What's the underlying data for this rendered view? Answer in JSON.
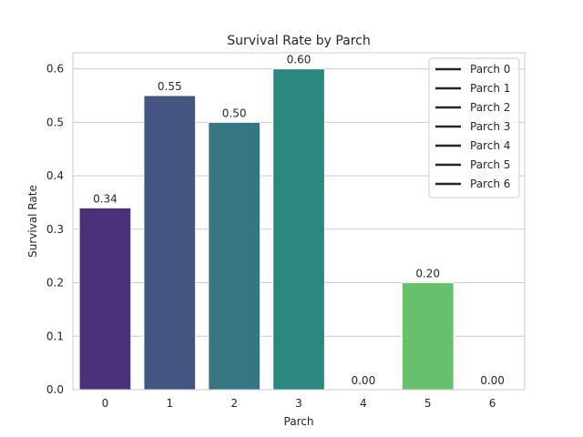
{
  "chart_data": {
    "type": "bar",
    "title": "Survival Rate by Parch",
    "xlabel": "Parch",
    "ylabel": "Survival Rate",
    "categories": [
      "0",
      "1",
      "2",
      "3",
      "4",
      "5",
      "6"
    ],
    "values": [
      0.34,
      0.55,
      0.5,
      0.6,
      0.0,
      0.2,
      0.0
    ],
    "data_labels": [
      "0.34",
      "0.55",
      "0.50",
      "0.60",
      "0.00",
      "0.20",
      "0.00"
    ],
    "colors": [
      "#4b3178",
      "#435682",
      "#367682",
      "#2c8781",
      "#3aa27a",
      "#69c06c",
      "#a5d354"
    ],
    "ylim": [
      0,
      0.63
    ],
    "yticks": [
      "0.0",
      "0.1",
      "0.2",
      "0.3",
      "0.4",
      "0.5",
      "0.6"
    ],
    "ytick_values": [
      0,
      0.1,
      0.2,
      0.3,
      0.4,
      0.5,
      0.6
    ],
    "grid": "horizontal",
    "legend": {
      "placement": "top-right",
      "entries": [
        "Parch 0",
        "Parch 1",
        "Parch 2",
        "Parch 3",
        "Parch 4",
        "Parch 5",
        "Parch 6"
      ]
    }
  }
}
